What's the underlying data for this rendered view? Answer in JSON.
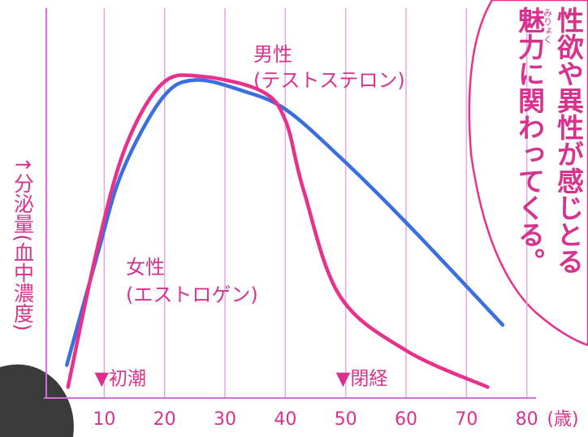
{
  "chart_data": {
    "type": "line",
    "ylabel": "↑分泌量(血中濃度)",
    "xlabel": "(歳)",
    "xlim": [
      0,
      90
    ],
    "xticks": [
      10,
      20,
      30,
      40,
      50,
      60,
      70,
      80
    ],
    "ylim": [
      0,
      100
    ],
    "grid": true,
    "series": [
      {
        "name": "男性",
        "subname": "(テストステロン)",
        "color": "#3a6fe0",
        "x": [
          3.8,
          9,
          13,
          19.6,
          25,
          33,
          40,
          49,
          60,
          76
        ],
        "values": [
          9,
          40,
          62,
          82,
          87,
          84,
          79,
          66,
          48,
          20
        ]
      },
      {
        "name": "女性",
        "subname": "(エストロゲン)",
        "color": "#e8318a",
        "x": [
          4,
          9,
          13.6,
          19.6,
          26,
          36,
          40,
          43,
          49,
          60,
          73.5
        ],
        "values": [
          3,
          42,
          69,
          86,
          88,
          84,
          76,
          57,
          28,
          13,
          3
        ]
      }
    ],
    "annotations": [
      {
        "text": "▼初潮",
        "x": 10
      },
      {
        "text": "▼閉経",
        "x": 50
      }
    ],
    "callout": {
      "lines": [
        "性欲や異性が感じとる",
        "魅力に関わってくる。"
      ],
      "ruby": "みりょく"
    }
  }
}
